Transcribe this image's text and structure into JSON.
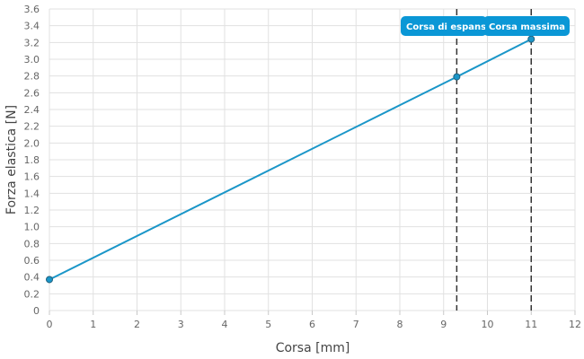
{
  "chart_data": {
    "type": "line",
    "xlabel": "Corsa [mm]",
    "ylabel": "Forza elastica [N]",
    "xlim": [
      0,
      12
    ],
    "ylim": [
      0,
      3.6
    ],
    "x_ticks": [
      0,
      1,
      2,
      3,
      4,
      5,
      6,
      7,
      8,
      9,
      10,
      11,
      12
    ],
    "y_ticks": [
      0,
      0.2,
      0.4,
      0.6,
      0.8,
      1.0,
      1.2,
      1.4,
      1.6,
      1.8,
      2.0,
      2.2,
      2.4,
      2.6,
      2.8,
      3.0,
      3.2,
      3.4,
      3.6
    ],
    "y_tick_labels": [
      "0",
      "0.2",
      "0.4",
      "0.6",
      "0.8",
      "1.0",
      "1.2",
      "1.4",
      "1.6",
      "1.8",
      "2.0",
      "2.2",
      "2.4",
      "2.6",
      "2.8",
      "3.0",
      "3.2",
      "3.4",
      "3.6"
    ],
    "grid": true,
    "series": [
      {
        "color": "#1a96c8",
        "points": [
          {
            "x": 0,
            "y": 0.37
          },
          {
            "x": 9.3,
            "y": 2.79
          },
          {
            "x": 11,
            "y": 3.24
          }
        ]
      }
    ],
    "reference_lines": [
      {
        "x": 9.3,
        "label": "Corsa di espansione",
        "style": "dashed"
      },
      {
        "x": 11,
        "label": "Corsa massima",
        "style": "dashed"
      }
    ],
    "colors": {
      "line": "#1a96c8",
      "label_bg": "#0a97d6",
      "reference": "#333333"
    }
  }
}
